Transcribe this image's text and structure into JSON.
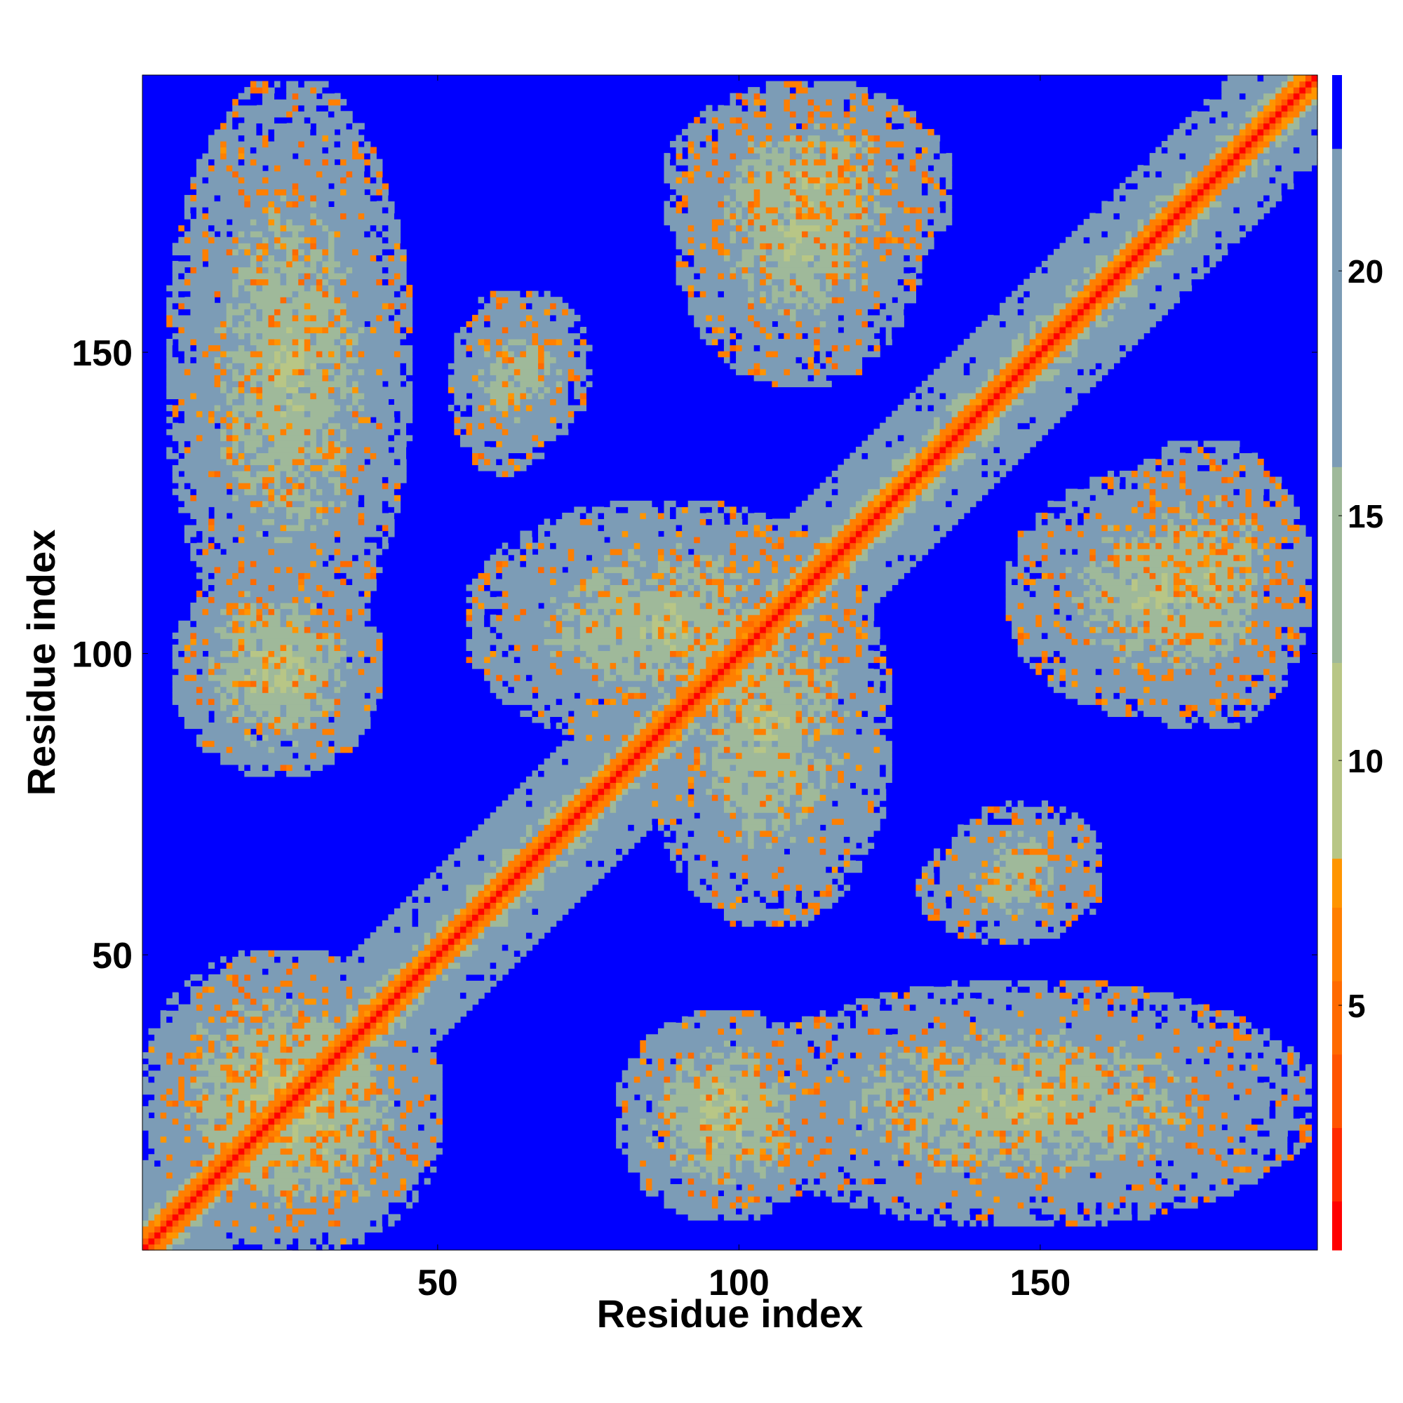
{
  "chart_data": {
    "type": "heatmap",
    "title": "",
    "xlabel": "Residue index",
    "ylabel": "Residue index",
    "n_residues": 196,
    "xlim": [
      1,
      196
    ],
    "ylim": [
      1,
      196
    ],
    "x_ticks": [
      50,
      100,
      150
    ],
    "y_ticks": [
      50,
      100,
      150
    ],
    "colorbar": {
      "range": [
        0,
        24
      ],
      "ticks": [
        5,
        10,
        15,
        20
      ],
      "levels": [
        {
          "from": 0,
          "to": 1,
          "color": "#ff0000"
        },
        {
          "from": 1,
          "to": 2.5,
          "color": "#ff2a00"
        },
        {
          "from": 2.5,
          "to": 4,
          "color": "#ff5400"
        },
        {
          "from": 4,
          "to": 5.5,
          "color": "#ff6a00"
        },
        {
          "from": 5.5,
          "to": 7,
          "color": "#ff7f00"
        },
        {
          "from": 7,
          "to": 8,
          "color": "#ff9500"
        },
        {
          "from": 8,
          "to": 12,
          "color": "#b8c686"
        },
        {
          "from": 12,
          "to": 16,
          "color": "#9fb99a"
        },
        {
          "from": 16,
          "to": 22.5,
          "color": "#7c9cb6"
        },
        {
          "from": 22.5,
          "to": 24,
          "color": "#0000ff"
        }
      ]
    },
    "background_color": "#0000ff",
    "features": {
      "diagonal": "distance 0-4 along i=j, orange band out to |i-j|~3",
      "contact_blocks": [
        {
          "x": [
            1,
            45
          ],
          "y": [
            5,
            50
          ],
          "level": 12
        },
        {
          "x": [
            1,
            50
          ],
          "y": [
            5,
            45
          ],
          "level": 12
        },
        {
          "x": [
            6,
            40
          ],
          "y": [
            80,
            115
          ],
          "level": 12
        },
        {
          "x": [
            80,
            115
          ],
          "y": [
            6,
            40
          ],
          "level": 12
        },
        {
          "x": [
            5,
            45
          ],
          "y": [
            100,
            195
          ],
          "level": 13
        },
        {
          "x": [
            100,
            195
          ],
          "y": [
            5,
            45
          ],
          "level": 13
        },
        {
          "x": [
            55,
            120
          ],
          "y": [
            85,
            125
          ],
          "level": 13
        },
        {
          "x": [
            85,
            125
          ],
          "y": [
            55,
            120
          ],
          "level": 13
        },
        {
          "x": [
            88,
            135
          ],
          "y": [
            160,
            195
          ],
          "level": 13
        },
        {
          "x": [
            160,
            195
          ],
          "y": [
            88,
            135
          ],
          "level": 13
        },
        {
          "x": [
            145,
            195
          ],
          "y": [
            90,
            130
          ],
          "level": 13
        },
        {
          "x": [
            90,
            130
          ],
          "y": [
            145,
            195
          ],
          "level": 13
        },
        {
          "x": [
            52,
            70
          ],
          "y": [
            130,
            160
          ],
          "level": 14
        },
        {
          "x": [
            130,
            160
          ],
          "y": [
            52,
            70
          ],
          "level": 14
        },
        {
          "x": [
            135,
            160
          ],
          "y": [
            55,
            75
          ],
          "level": 14
        },
        {
          "x": [
            55,
            75
          ],
          "y": [
            135,
            160
          ],
          "level": 14
        }
      ]
    },
    "grid": false,
    "colorbar_position": "right"
  }
}
